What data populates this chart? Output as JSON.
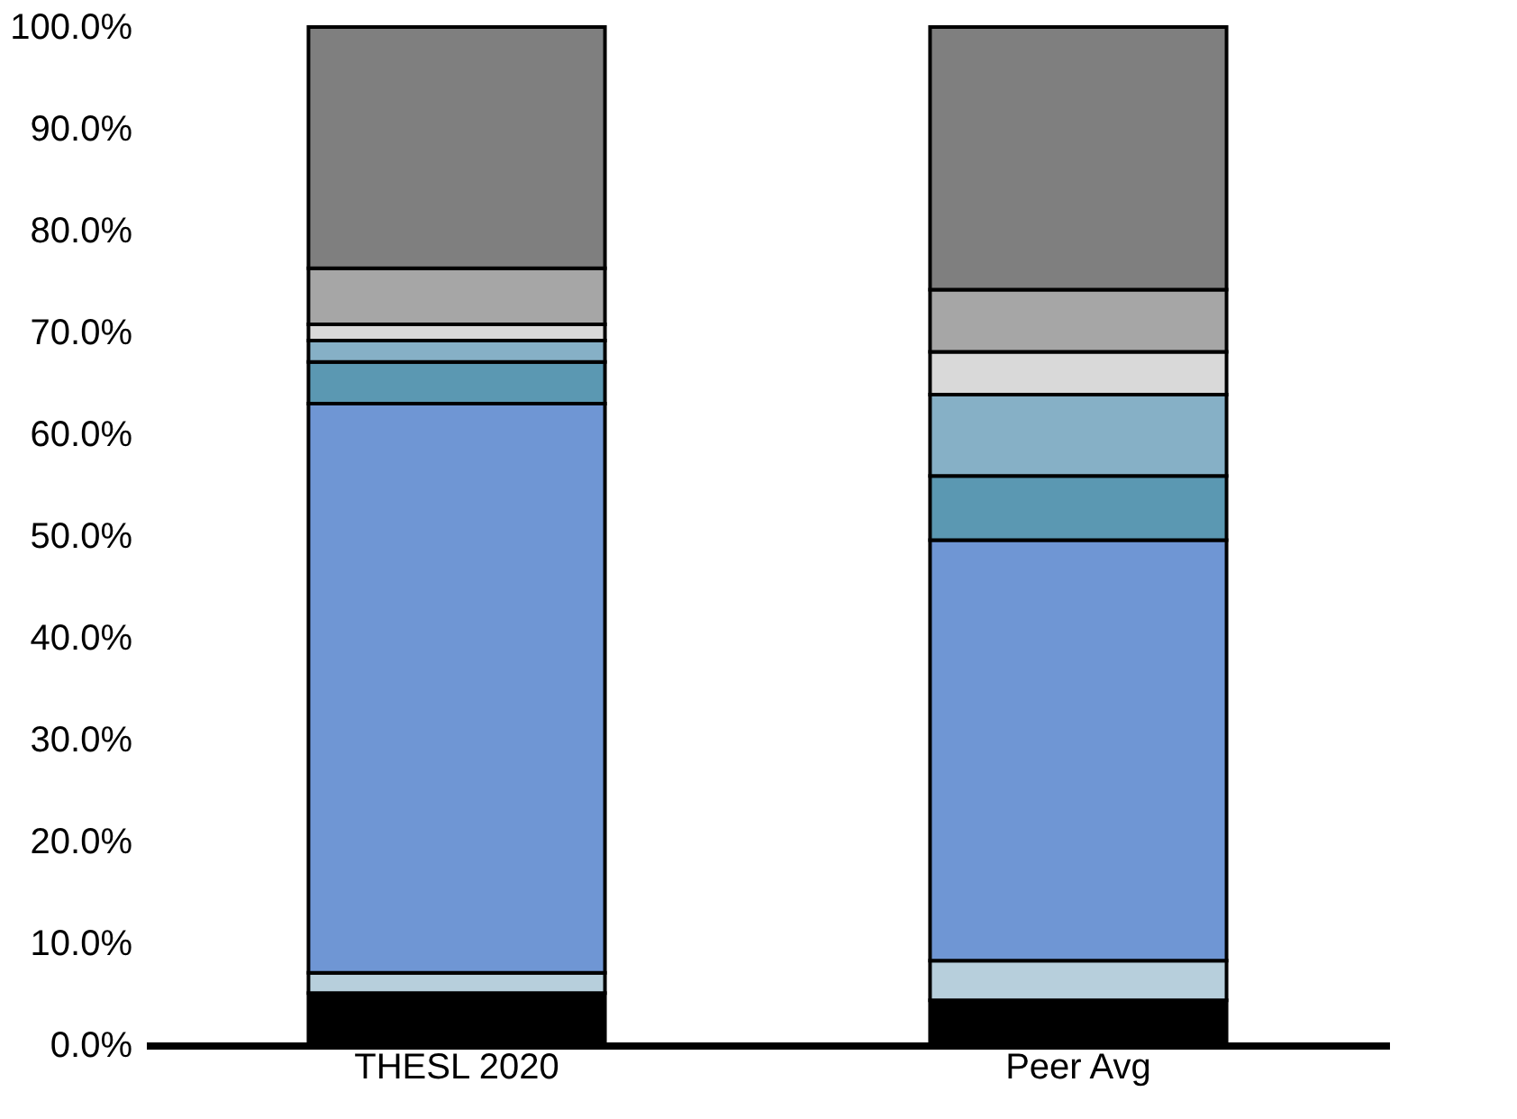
{
  "chart_data": {
    "type": "bar",
    "stacked": true,
    "categories": [
      "THESL 2020",
      "Peer Avg"
    ],
    "series": [
      {
        "color": "#000000",
        "values": [
          5.1,
          4.4
        ]
      },
      {
        "color": "#b7cfdc",
        "values": [
          2.0,
          3.9
        ]
      },
      {
        "color": "#6f96d4",
        "values": [
          55.9,
          41.3
        ]
      },
      {
        "color": "#5b98b2",
        "values": [
          4.1,
          6.3
        ]
      },
      {
        "color": "#86b0c6",
        "values": [
          2.1,
          8.0
        ]
      },
      {
        "color": "#d9d9d9",
        "values": [
          1.6,
          4.2
        ]
      },
      {
        "color": "#a6a6a6",
        "values": [
          5.5,
          6.1
        ]
      },
      {
        "color": "#7f7f7f",
        "values": [
          23.7,
          25.8
        ]
      }
    ],
    "ylim": [
      0,
      100
    ],
    "yticks": [
      {
        "value": 0,
        "label": "0.0%"
      },
      {
        "value": 10,
        "label": "10.0%"
      },
      {
        "value": 20,
        "label": "20.0%"
      },
      {
        "value": 30,
        "label": "30.0%"
      },
      {
        "value": 40,
        "label": "40.0%"
      },
      {
        "value": 50,
        "label": "50.0%"
      },
      {
        "value": 60,
        "label": "60.0%"
      },
      {
        "value": 70,
        "label": "70.0%"
      },
      {
        "value": 80,
        "label": "80.0%"
      },
      {
        "value": 90,
        "label": "90.0%"
      },
      {
        "value": 100,
        "label": "100.0%"
      }
    ],
    "grid": false
  }
}
